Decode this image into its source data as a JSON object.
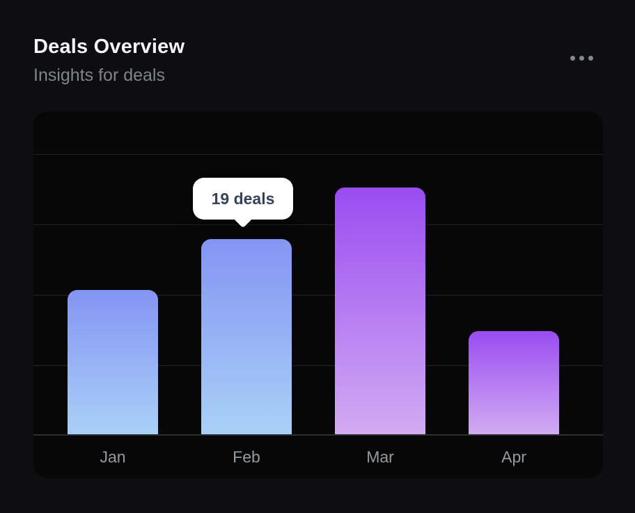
{
  "header": {
    "title": "Deals Overview",
    "subtitle": "Insights for deals"
  },
  "menu": {
    "icon": "ellipsis-icon"
  },
  "tooltip": {
    "label": "19 deals",
    "target_category": "Feb"
  },
  "colors": {
    "page_bg": "#0e0e10",
    "card_bg": "#070708",
    "title": "#f4f5f6",
    "subtitle": "#7f848d",
    "menu_dot": "#84888f",
    "gridline": "#1f2226",
    "axis_line": "#2d3036",
    "axis_label": "#959aa1",
    "tooltip_bg": "#ffffff",
    "tooltip_text": "#36435c",
    "bar_blue_top": "#8494f3",
    "bar_blue_bottom": "#a9d1f7",
    "bar_purple_top": "#9a4cf1",
    "bar_purple_bottom": "#d2abf2"
  },
  "chart_data": {
    "type": "bar",
    "title": "Deals Overview",
    "categories": [
      "Jan",
      "Feb",
      "Mar",
      "Apr"
    ],
    "values": [
      14,
      19,
      24,
      10
    ],
    "series_name": "deals",
    "xlabel": "",
    "ylabel": "",
    "ylim": [
      0,
      31.5
    ],
    "grid": true,
    "legend": false,
    "bar_palette": [
      "blue",
      "blue",
      "purple",
      "purple"
    ],
    "annotations": [
      {
        "category": "Feb",
        "text": "19 deals"
      }
    ]
  }
}
